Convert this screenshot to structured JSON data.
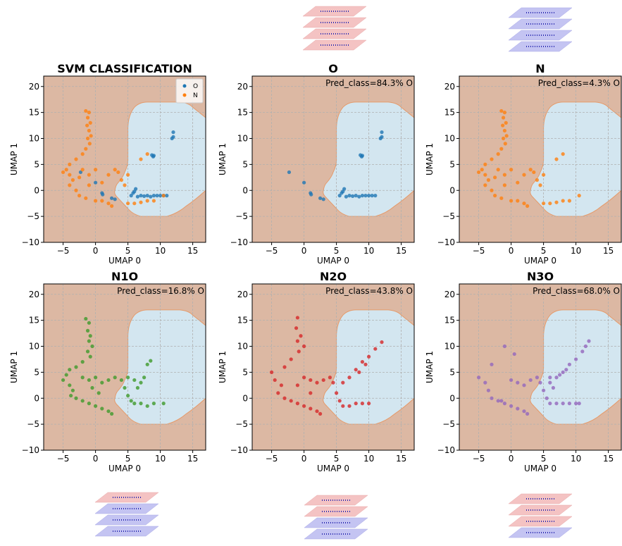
{
  "chart_data": [
    {
      "type": "scatter",
      "title": "SVM CLASSIFICATION",
      "xlabel": "UMAP 0",
      "ylabel": "UMAP 1",
      "xlim": [
        -8,
        17
      ],
      "ylim": [
        -10,
        22
      ],
      "xticks": [
        {
          "value": -5,
          "label": "−5"
        },
        0,
        5,
        10,
        15
      ],
      "yticks": [
        {
          "value": -10,
          "label": "−10"
        },
        {
          "value": -5,
          "label": "−5"
        },
        0,
        5,
        10,
        15,
        20
      ],
      "grid": true,
      "legend": "upper right",
      "series": [
        {
          "name": "O",
          "color": "#1f77b4",
          "x": [
            -2.3,
            0,
            1,
            1.1,
            2.5,
            3,
            5.8,
            6,
            6.2,
            5.5,
            7,
            8,
            9,
            9.5,
            10,
            10.5,
            11,
            8.7,
            9,
            8.9,
            12,
            12,
            11.8,
            6.5,
            7.5,
            8.5
          ],
          "values": [
            3.5,
            1.5,
            -0.5,
            -0.8,
            -1.5,
            -1.7,
            -0.5,
            -0.2,
            0.3,
            -1,
            -1,
            -1,
            -1,
            -1,
            -1,
            -1,
            -1,
            6.8,
            6.7,
            6.5,
            11.2,
            10.3,
            10,
            -1.2,
            -1.1,
            -1.2
          ]
        },
        {
          "name": "N",
          "color": "#ff7f0e",
          "x": [
            -1.5,
            -1,
            -1.2,
            -0.8,
            -1.3,
            -1,
            -0.7,
            -1.2,
            -0.9,
            -1.5,
            -2,
            -3,
            -4,
            -4.5,
            -5,
            -4,
            -3.5,
            -4,
            -3,
            -2.5,
            -1.5,
            0,
            1,
            2,
            2.5,
            -2,
            -1,
            0,
            -2.5,
            2,
            3,
            3.5,
            4,
            4.5,
            5,
            6,
            7,
            8,
            9,
            10.5,
            7,
            8,
            5,
            -1,
            1
          ],
          "values": [
            15.3,
            15,
            14,
            13,
            12.5,
            11.5,
            10.5,
            10,
            9,
            8,
            7,
            6,
            5,
            4,
            3.5,
            3,
            2,
            1,
            0,
            -1,
            -1.5,
            -2,
            -2,
            -2.5,
            -3,
            4,
            3,
            4,
            2.5,
            3,
            4,
            3.5,
            2,
            1,
            -2.5,
            -2.5,
            -2.3,
            -2,
            -2,
            -1,
            6,
            7,
            3,
            1,
            1.5
          ]
        }
      ]
    },
    {
      "type": "scatter",
      "title": "O",
      "annotation": "Pred_class=84.3% O",
      "xlabel": "UMAP 0",
      "ylabel": "UMAP 1",
      "xlim": [
        -8,
        17
      ],
      "ylim": [
        -10,
        22
      ],
      "xticks": [
        {
          "value": -5,
          "label": "−5"
        },
        0,
        5,
        10,
        15
      ],
      "yticks": [
        {
          "value": -10,
          "label": "−10"
        },
        {
          "value": -5,
          "label": "−5"
        },
        0,
        5,
        10,
        15,
        20
      ],
      "grid": true,
      "series": [
        {
          "color": "#1f77b4",
          "x": [
            -2.3,
            0,
            1,
            1.1,
            2.5,
            3,
            5.8,
            6,
            6.2,
            5.5,
            7,
            8,
            9,
            9.5,
            10,
            10.5,
            11,
            8.7,
            9,
            8.9,
            12,
            12,
            11.8,
            6.5,
            7.5,
            8.5
          ],
          "values": [
            3.5,
            1.5,
            -0.5,
            -0.8,
            -1.5,
            -1.7,
            -0.5,
            -0.2,
            0.3,
            -1,
            -1,
            -1,
            -1,
            -1,
            -1,
            -1,
            -1,
            6.8,
            6.7,
            6.5,
            11.2,
            10.3,
            10,
            -1.2,
            -1.1,
            -1.2
          ]
        }
      ]
    },
    {
      "type": "scatter",
      "title": "N",
      "annotation": "Pred_class=4.3% O",
      "xlabel": "UMAP 0",
      "ylabel": "UMAP 1",
      "xlim": [
        -8,
        17
      ],
      "ylim": [
        -10,
        22
      ],
      "xticks": [
        {
          "value": -5,
          "label": "−5"
        },
        0,
        5,
        10,
        15
      ],
      "yticks": [
        {
          "value": -10,
          "label": "−10"
        },
        {
          "value": -5,
          "label": "−5"
        },
        0,
        5,
        10,
        15,
        20
      ],
      "grid": true,
      "series": [
        {
          "color": "#ff7f0e",
          "x": [
            -1.5,
            -1,
            -1.2,
            -0.8,
            -1.3,
            -1,
            -0.7,
            -1.2,
            -0.9,
            -1.5,
            -2,
            -3,
            -4,
            -4.5,
            -5,
            -4,
            -3.5,
            -4,
            -3,
            -2.5,
            -1.5,
            0,
            1,
            2,
            2.5,
            -2,
            -1,
            0,
            -2.5,
            2,
            3,
            3.5,
            4,
            4.5,
            5,
            6,
            7,
            8,
            9,
            10.5,
            7,
            8,
            5,
            -1,
            1
          ],
          "values": [
            15.3,
            15,
            14,
            13,
            12.5,
            11.5,
            10.5,
            10,
            9,
            8,
            7,
            6,
            5,
            4,
            3.5,
            3,
            2,
            1,
            0,
            -1,
            -1.5,
            -2,
            -2,
            -2.5,
            -3,
            4,
            3,
            4,
            2.5,
            3,
            4,
            3.5,
            2,
            1,
            -2.5,
            -2.5,
            -2.3,
            -2,
            -2,
            -1,
            6,
            7,
            3,
            1,
            1.5
          ]
        }
      ]
    },
    {
      "type": "scatter",
      "title": "N1O",
      "annotation": "Pred_class=16.8% O",
      "xlabel": "UMAP 0",
      "ylabel": "UMAP 1",
      "xlim": [
        -8,
        17
      ],
      "ylim": [
        -10,
        22
      ],
      "xticks": [
        {
          "value": -5,
          "label": "−5"
        },
        0,
        5,
        10,
        15
      ],
      "yticks": [
        {
          "value": -10,
          "label": "−10"
        },
        {
          "value": -5,
          "label": "−5"
        },
        0,
        5,
        10,
        15,
        20
      ],
      "grid": true,
      "series": [
        {
          "color": "#3f9a2a",
          "x": [
            -1.5,
            -1,
            -1.2,
            -0.8,
            -1,
            -0.5,
            -1.2,
            -0.8,
            -2,
            -3,
            -4,
            -4.5,
            -5,
            -4,
            -3.5,
            -3.8,
            -3,
            -2,
            -1,
            0,
            1,
            2,
            2.5,
            -2,
            -1,
            0,
            1,
            2,
            3,
            4,
            4.5,
            5,
            5.5,
            6,
            7,
            8,
            9,
            10.5,
            6.5,
            7,
            7.5,
            8.5,
            8,
            6,
            5,
            -0.5,
            0.5
          ],
          "values": [
            15.3,
            14.5,
            13,
            12,
            11,
            10,
            9,
            8,
            7,
            6,
            5.5,
            4.5,
            3.5,
            2.5,
            1.5,
            0.5,
            0,
            -0.5,
            -1,
            -1.5,
            -2,
            -2.5,
            -3,
            4,
            3.5,
            4,
            3,
            3.5,
            4,
            3.5,
            2,
            0.5,
            -0.5,
            -1,
            -1,
            -1.5,
            -1,
            -1,
            2,
            3,
            4,
            7.2,
            6.5,
            3.5,
            4,
            2,
            1
          ]
        }
      ]
    },
    {
      "type": "scatter",
      "title": "N2O",
      "annotation": "Pred_class=43.8% O",
      "xlabel": "UMAP 0",
      "ylabel": "UMAP 1",
      "xlim": [
        -8,
        17
      ],
      "ylim": [
        -10,
        22
      ],
      "xticks": [
        {
          "value": -5,
          "label": "−5"
        },
        0,
        5,
        10,
        15
      ],
      "yticks": [
        {
          "value": -10,
          "label": "−10"
        },
        {
          "value": -5,
          "label": "−5"
        },
        0,
        5,
        10,
        15,
        20
      ],
      "grid": true,
      "series": [
        {
          "color": "#d62728",
          "x": [
            -1,
            -1.2,
            -0.5,
            -1,
            0,
            -0.8,
            -2,
            -3,
            -5,
            -4.5,
            -3.5,
            -4,
            -3,
            -2,
            -1,
            0,
            1,
            2,
            2.5,
            0,
            1,
            2,
            3,
            4,
            4.5,
            5,
            5.5,
            6,
            7,
            8,
            9,
            10,
            6,
            7,
            8,
            9,
            10,
            11,
            12,
            8.5,
            9.5,
            -1,
            1
          ],
          "values": [
            15.5,
            13.5,
            12,
            11,
            10,
            9,
            7.5,
            6,
            5,
            3.5,
            2.5,
            1,
            0,
            -0.5,
            -1,
            -1.5,
            -2,
            -2.5,
            -3,
            4,
            3.5,
            3,
            3.5,
            4,
            3,
            1,
            -0.5,
            -1.5,
            -1.5,
            -1,
            -1,
            -1,
            3,
            4,
            5.5,
            7,
            8,
            9.5,
            10.8,
            5,
            6.5,
            2.5,
            1
          ]
        }
      ]
    },
    {
      "type": "scatter",
      "title": "N3O",
      "annotation": "Pred_class=68.0% O",
      "xlabel": "UMAP 0",
      "ylabel": "UMAP 1",
      "xlim": [
        -8,
        17
      ],
      "ylim": [
        -10,
        22
      ],
      "xticks": [
        {
          "value": -5,
          "label": "−5"
        },
        0,
        5,
        10,
        15
      ],
      "yticks": [
        {
          "value": -10,
          "label": "−10"
        },
        {
          "value": -5,
          "label": "−5"
        },
        0,
        5,
        10,
        15,
        20
      ],
      "grid": true,
      "series": [
        {
          "color": "#9467bd",
          "x": [
            -1,
            -3,
            -5,
            -4,
            -3.5,
            -3,
            -2,
            -1,
            0,
            1,
            2,
            2.5,
            0,
            1,
            2,
            3,
            4,
            4.5,
            5,
            5.5,
            6,
            7,
            8,
            9,
            10,
            10.5,
            6,
            7,
            8,
            9,
            10,
            11,
            12,
            11.5,
            8.5,
            7.5,
            6.5,
            6,
            0.5,
            -1.5
          ],
          "values": [
            10,
            6.5,
            4,
            3,
            1.5,
            0,
            -0.5,
            -1,
            -1.5,
            -2,
            -2.5,
            -3,
            3.5,
            3,
            2.5,
            3.5,
            4,
            3,
            1.5,
            0,
            -1,
            -1,
            -1,
            -1,
            -1,
            -1,
            3,
            4,
            5,
            6.5,
            7.5,
            9,
            11,
            10,
            5.5,
            4.5,
            2,
            4,
            8.5,
            -0.5
          ]
        }
      ]
    }
  ]
}
